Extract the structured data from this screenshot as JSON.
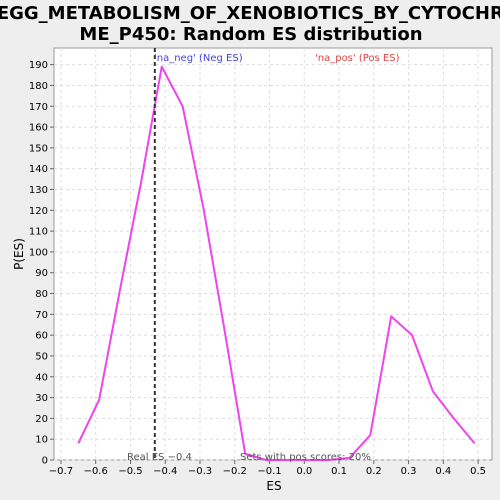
{
  "chart_data": {
    "type": "line",
    "title_lines": [
      "KEGG_METABOLISM_OF_XENOBIOTICS_BY_CYTOCHRO",
      "ME_P450: Random ES distribution"
    ],
    "xlabel": "ES",
    "ylabel": "P(ES)",
    "xlim": [
      -0.72,
      0.54
    ],
    "ylim": [
      0,
      198
    ],
    "x_ticks": [
      -0.7,
      -0.6,
      -0.5,
      -0.4,
      -0.3,
      -0.2,
      -0.1,
      0.0,
      0.1,
      0.2,
      0.3,
      0.4,
      0.5
    ],
    "x_tick_labels": [
      "−0.7",
      "−0.6",
      "−0.5",
      "−0.4",
      "−0.3",
      "−0.2",
      "−0.1",
      "0.0",
      "0.1",
      "0.2",
      "0.3",
      "0.4",
      "0.5"
    ],
    "y_ticks": [
      0,
      10,
      20,
      30,
      40,
      50,
      60,
      70,
      80,
      90,
      100,
      110,
      120,
      130,
      140,
      150,
      160,
      170,
      180,
      190
    ],
    "grid": true,
    "series": [
      {
        "color": "#ee44ee",
        "x": [
          -0.65,
          -0.59,
          -0.53,
          -0.47,
          -0.41,
          -0.35,
          -0.29,
          -0.23,
          -0.17,
          -0.11,
          -0.05,
          0.01,
          0.07,
          0.13,
          0.19,
          0.25,
          0.31,
          0.37,
          0.43,
          0.49
        ],
        "y": [
          8,
          29,
          82,
          133,
          189,
          170,
          121,
          63,
          3,
          0,
          0,
          0,
          0,
          1,
          12,
          69,
          60,
          33,
          20,
          8
        ]
      }
    ],
    "legend": {
      "neg": {
        "text": "'na_neg' (Neg ES)",
        "color": "#4444dd"
      },
      "pos": {
        "text": "'na_pos' (Pos ES)",
        "color": "#dd4444"
      }
    },
    "real_es": {
      "x": -0.43,
      "label": "Real ES −0.4"
    },
    "annotation": "Sets with pos scores: 20%"
  }
}
